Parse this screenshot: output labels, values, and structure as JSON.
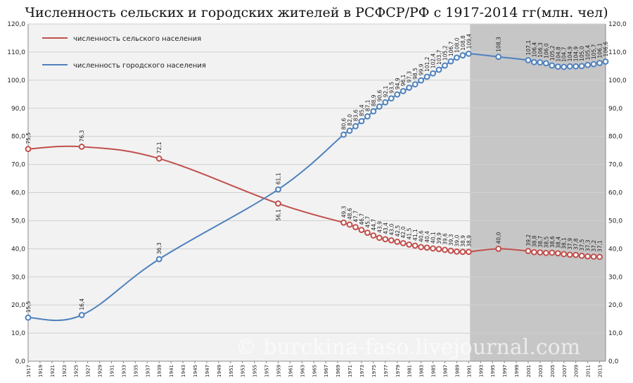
{
  "chart_data": {
    "type": "line",
    "title": "Численность сельских и городских жителей в РСФСР/РФ с 1917-2014 гг(млн. чел)",
    "ylim": [
      0,
      120
    ],
    "y_ticks": [
      "0,0",
      "10,0",
      "20,0",
      "30,0",
      "40,0",
      "50,0",
      "60,0",
      "70,0",
      "80,0",
      "90,0",
      "100,0",
      "110,0",
      "120,0"
    ],
    "xlim": [
      1917,
      2014
    ],
    "x_ticks": [
      "1917",
      "1919",
      "1921",
      "1923",
      "1925",
      "1927",
      "1929",
      "1931",
      "1933",
      "1935",
      "1937",
      "1939",
      "1941",
      "1943",
      "1945",
      "1947",
      "1949",
      "1951",
      "1953",
      "1955",
      "1957",
      "1959",
      "1961",
      "1963",
      "1965",
      "1967",
      "1969",
      "1971",
      "1973",
      "1975",
      "1977",
      "1979",
      "1981",
      "1983",
      "1985",
      "1987",
      "1989",
      "1991",
      "1993",
      "1995",
      "1997",
      "1999",
      "2001",
      "2003",
      "2005",
      "2007",
      "2009",
      "2011",
      "2013"
    ],
    "shaded_from": 1991,
    "grid": true,
    "legend_position": "top-left",
    "series": [
      {
        "name": "численность сельского населения",
        "color": "#c0504d",
        "points": [
          {
            "x": 1917,
            "y": 75.5,
            "label": "75,5"
          },
          {
            "x": 1926,
            "y": 76.3,
            "label": "76,3"
          },
          {
            "x": 1939,
            "y": 72.1,
            "label": "72,1"
          },
          {
            "x": 1959,
            "y": 56.1,
            "label": "56,1"
          },
          {
            "x": 1970,
            "y": 49.3,
            "label": "49,3"
          },
          {
            "x": 1971,
            "y": 48.6,
            "label": "48,6"
          },
          {
            "x": 1972,
            "y": 47.7,
            "label": "47,7"
          },
          {
            "x": 1973,
            "y": 46.7,
            "label": "46,7"
          },
          {
            "x": 1974,
            "y": 45.7,
            "label": "45,7"
          },
          {
            "x": 1975,
            "y": 44.7,
            "label": "44,7"
          },
          {
            "x": 1976,
            "y": 43.9,
            "label": "43,9"
          },
          {
            "x": 1977,
            "y": 43.4,
            "label": "43,4"
          },
          {
            "x": 1978,
            "y": 43.0,
            "label": "43,0"
          },
          {
            "x": 1979,
            "y": 42.5,
            "label": "42,5"
          },
          {
            "x": 1980,
            "y": 42.0,
            "label": "42,0"
          },
          {
            "x": 1981,
            "y": 41.5,
            "label": "41,5"
          },
          {
            "x": 1982,
            "y": 41.1,
            "label": "41,1"
          },
          {
            "x": 1983,
            "y": 40.6,
            "label": "40,6"
          },
          {
            "x": 1984,
            "y": 40.4,
            "label": "40,4"
          },
          {
            "x": 1985,
            "y": 40.1,
            "label": "40,1"
          },
          {
            "x": 1986,
            "y": 39.9,
            "label": "39,9"
          },
          {
            "x": 1987,
            "y": 39.6,
            "label": "39,6"
          },
          {
            "x": 1988,
            "y": 39.3,
            "label": "39,3"
          },
          {
            "x": 1989,
            "y": 39.0,
            "label": "39,0"
          },
          {
            "x": 1990,
            "y": 38.9,
            "label": "38,9"
          },
          {
            "x": 1991,
            "y": 38.9,
            "label": "38,9"
          },
          {
            "x": 1996,
            "y": 40.0,
            "label": "40,0"
          },
          {
            "x": 2001,
            "y": 39.2,
            "label": "39,2"
          },
          {
            "x": 2002,
            "y": 38.8,
            "label": "38,8"
          },
          {
            "x": 2003,
            "y": 38.7,
            "label": "38,7"
          },
          {
            "x": 2004,
            "y": 38.5,
            "label": "38,5"
          },
          {
            "x": 2005,
            "y": 38.6,
            "label": "38,6"
          },
          {
            "x": 2006,
            "y": 38.4,
            "label": "38,4"
          },
          {
            "x": 2007,
            "y": 38.1,
            "label": "38,1"
          },
          {
            "x": 2008,
            "y": 37.9,
            "label": "37,9"
          },
          {
            "x": 2009,
            "y": 37.8,
            "label": "37,8"
          },
          {
            "x": 2010,
            "y": 37.5,
            "label": "37,5"
          },
          {
            "x": 2011,
            "y": 37.3,
            "label": "37,3"
          },
          {
            "x": 2012,
            "y": 37.2,
            "label": "37,2"
          },
          {
            "x": 2013,
            "y": 37.1,
            "label": "37,1"
          }
        ]
      },
      {
        "name": "численность городского населения",
        "color": "#4f81bd",
        "points": [
          {
            "x": 1917,
            "y": 15.5,
            "label": "15,5"
          },
          {
            "x": 1926,
            "y": 16.4,
            "label": "16,4"
          },
          {
            "x": 1939,
            "y": 36.3,
            "label": "36,3"
          },
          {
            "x": 1959,
            "y": 61.1,
            "label": "61,1"
          },
          {
            "x": 1970,
            "y": 80.6,
            "label": "80,6"
          },
          {
            "x": 1971,
            "y": 82.0,
            "label": "82,0"
          },
          {
            "x": 1972,
            "y": 83.6,
            "label": "83,6"
          },
          {
            "x": 1973,
            "y": 85.4,
            "label": "85,4"
          },
          {
            "x": 1974,
            "y": 87.1,
            "label": "87,1"
          },
          {
            "x": 1975,
            "y": 88.9,
            "label": "88,9"
          },
          {
            "x": 1976,
            "y": 90.6,
            "label": "90,6"
          },
          {
            "x": 1977,
            "y": 92.1,
            "label": "92,1"
          },
          {
            "x": 1978,
            "y": 93.5,
            "label": "93,5"
          },
          {
            "x": 1979,
            "y": 94.9,
            "label": "94,9"
          },
          {
            "x": 1980,
            "y": 96.1,
            "label": "96,1"
          },
          {
            "x": 1981,
            "y": 97.3,
            "label": "97,3"
          },
          {
            "x": 1982,
            "y": 98.5,
            "label": "98,5"
          },
          {
            "x": 1983,
            "y": 99.9,
            "label": "99,9"
          },
          {
            "x": 1984,
            "y": 101.2,
            "label": "101,2"
          },
          {
            "x": 1985,
            "y": 102.4,
            "label": "102,4"
          },
          {
            "x": 1986,
            "y": 103.7,
            "label": "103,7"
          },
          {
            "x": 1987,
            "y": 105.2,
            "label": "105,2"
          },
          {
            "x": 1988,
            "y": 106.7,
            "label": "106,7"
          },
          {
            "x": 1989,
            "y": 108.0,
            "label": "108,0"
          },
          {
            "x": 1990,
            "y": 108.8,
            "label": "108,8"
          },
          {
            "x": 1991,
            "y": 109.4,
            "label": "109,4"
          },
          {
            "x": 1996,
            "y": 108.3,
            "label": "108,3"
          },
          {
            "x": 2001,
            "y": 107.1,
            "label": "107,1"
          },
          {
            "x": 2002,
            "y": 106.4,
            "label": "106,4"
          },
          {
            "x": 2003,
            "y": 106.3,
            "label": "106,3"
          },
          {
            "x": 2004,
            "y": 106.0,
            "label": "106,0"
          },
          {
            "x": 2005,
            "y": 105.2,
            "label": "105,2"
          },
          {
            "x": 2006,
            "y": 104.8,
            "label": "104,8"
          },
          {
            "x": 2007,
            "y": 104.7,
            "label": "104,7"
          },
          {
            "x": 2008,
            "y": 104.9,
            "label": "104,9"
          },
          {
            "x": 2009,
            "y": 104.9,
            "label": "104,9"
          },
          {
            "x": 2010,
            "y": 105.0,
            "label": "105,0"
          },
          {
            "x": 2011,
            "y": 105.4,
            "label": "105,4"
          },
          {
            "x": 2012,
            "y": 105.7,
            "label": "105,7"
          },
          {
            "x": 2013,
            "y": 106.1,
            "label": "106,1"
          },
          {
            "x": 2014,
            "y": 106.6,
            "label": "106,6"
          }
        ]
      }
    ]
  },
  "watermark": "© burckina-faso.livejournal.com"
}
